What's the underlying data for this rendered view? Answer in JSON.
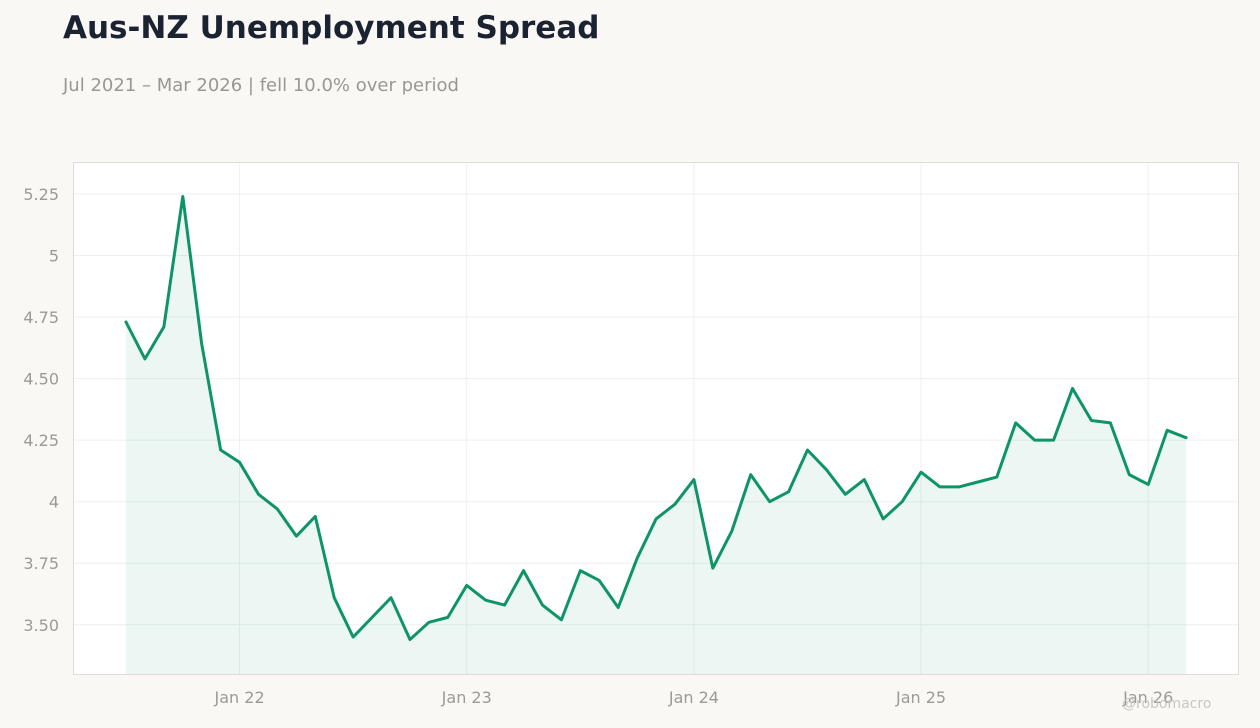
{
  "header": {
    "title": "Aus-NZ Unemployment Spread",
    "subtitle": "Jul 2021 – Mar 2026 | fell 10.0% over period"
  },
  "watermark": "@robomacro",
  "chart_data": {
    "type": "area",
    "title": "Aus-NZ Unemployment Spread",
    "subtitle": "Jul 2021 – Mar 2026 | fell 10.0% over period",
    "xlabel": "",
    "ylabel": "",
    "x_start": "2021-07",
    "x": [
      "Jul 21",
      "Aug 21",
      "Sep 21",
      "Oct 21",
      "Nov 21",
      "Dec 21",
      "Jan 22",
      "Feb 22",
      "Mar 22",
      "Apr 22",
      "May 22",
      "Jun 22",
      "Jul 22",
      "Aug 22",
      "Sep 22",
      "Oct 22",
      "Nov 22",
      "Dec 22",
      "Jan 23",
      "Feb 23",
      "Mar 23",
      "Apr 23",
      "May 23",
      "Jun 23",
      "Jul 23",
      "Aug 23",
      "Sep 23",
      "Oct 23",
      "Nov 23",
      "Dec 23",
      "Jan 24",
      "Feb 24",
      "Mar 24",
      "Apr 24",
      "May 24",
      "Jun 24",
      "Jul 24",
      "Aug 24",
      "Sep 24",
      "Oct 24",
      "Nov 24",
      "Dec 24",
      "Jan 25",
      "Feb 25",
      "Mar 25",
      "Apr 25",
      "May 25",
      "Jun 25",
      "Jul 25",
      "Aug 25",
      "Sep 25",
      "Oct 25",
      "Nov 25",
      "Dec 25",
      "Jan 26",
      "Feb 26",
      "Mar 26"
    ],
    "series": [
      {
        "values": [
          4.73,
          4.58,
          4.71,
          5.24,
          4.64,
          4.21,
          4.16,
          4.03,
          3.97,
          3.86,
          3.94,
          3.61,
          3.45,
          3.53,
          3.61,
          3.44,
          3.51,
          3.53,
          3.66,
          3.6,
          3.58,
          3.72,
          3.58,
          3.52,
          3.72,
          3.68,
          3.57,
          3.77,
          3.93,
          3.99,
          4.09,
          3.73,
          3.88,
          4.11,
          4.0,
          4.04,
          4.21,
          4.13,
          4.03,
          4.09,
          3.93,
          4.0,
          4.12,
          4.06,
          4.06,
          4.08,
          4.1,
          4.32,
          4.25,
          4.25,
          4.46,
          4.33,
          4.32,
          4.11,
          4.07,
          4.29,
          4.26
        ]
      }
    ],
    "ylim": [
      3.3,
      5.38
    ],
    "yticks": [
      3.5,
      3.75,
      4,
      4.25,
      4.5,
      4.75,
      5,
      5.25
    ],
    "ytick_labels": [
      "3.50",
      "3.75",
      "4",
      "4.25",
      "4.50",
      "4.75",
      "5",
      "5.25"
    ],
    "xticks": [
      {
        "index": 6,
        "label": "Jan 22"
      },
      {
        "index": 18,
        "label": "Jan 23"
      },
      {
        "index": 30,
        "label": "Jan 24"
      },
      {
        "index": 42,
        "label": "Jan 25"
      },
      {
        "index": 54,
        "label": "Jan 26"
      }
    ],
    "grid": true,
    "legend": "none",
    "colors": {
      "line": "#0e9467",
      "fill": "#0e9467",
      "grid": "#efefef",
      "frame": "#dddcd6",
      "tick_text": "#9c9a96"
    }
  }
}
